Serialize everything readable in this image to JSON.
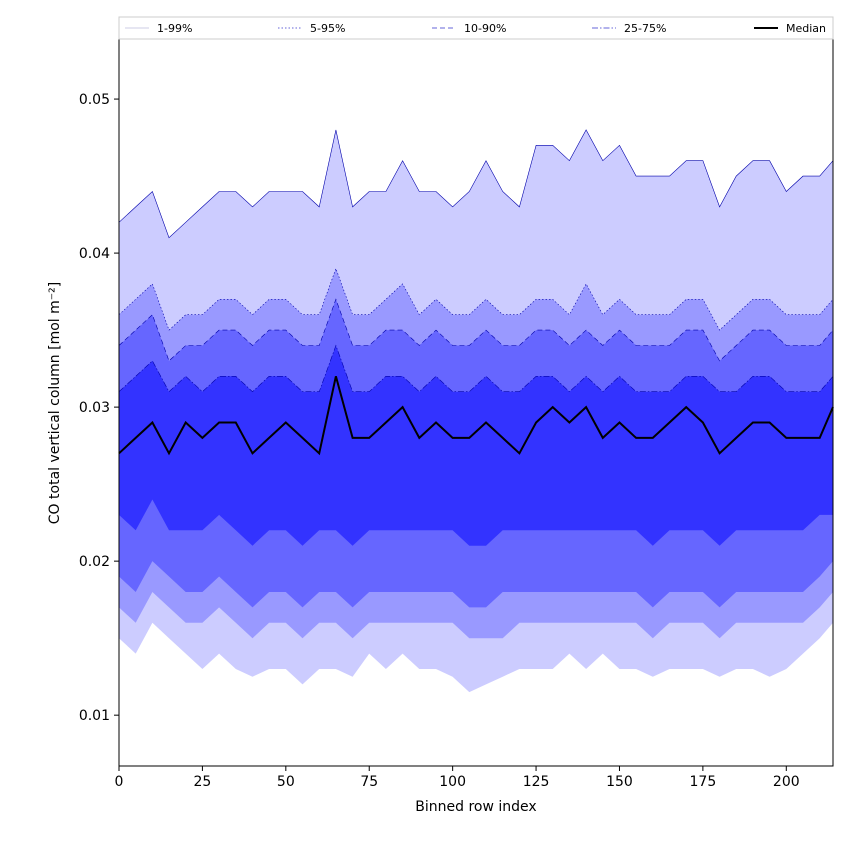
{
  "chart_data": {
    "type": "area",
    "xlabel": "Binned row index",
    "ylabel": "CO total vertical column [mol m⁻²]",
    "xlim": [
      0,
      214
    ],
    "ylim": [
      0.0067,
      0.0539
    ],
    "xticks": [
      0,
      25,
      50,
      75,
      100,
      125,
      150,
      175,
      200
    ],
    "yticks": [
      0.01,
      0.02,
      0.03,
      0.04,
      0.05
    ],
    "ytick_labels": [
      "0.01",
      "0.02",
      "0.03",
      "0.04",
      "0.05"
    ],
    "legend": {
      "placement": "top",
      "entries": [
        {
          "label": "1-99%",
          "color": "#ccccff",
          "dash": "solid"
        },
        {
          "label": "5-95%",
          "color": "#9999ff",
          "dash": "dotted"
        },
        {
          "label": "10-90%",
          "color": "#6666ff",
          "dash": "dashed"
        },
        {
          "label": "25-75%",
          "color": "#3333ff",
          "dash": "dashdot"
        },
        {
          "label": "Median",
          "color": "#000000",
          "dash": "solid"
        }
      ]
    },
    "x": [
      0,
      5,
      10,
      15,
      20,
      25,
      30,
      35,
      40,
      45,
      50,
      55,
      60,
      65,
      70,
      75,
      80,
      85,
      90,
      95,
      100,
      105,
      110,
      115,
      120,
      125,
      130,
      135,
      140,
      145,
      150,
      155,
      160,
      165,
      170,
      175,
      180,
      185,
      190,
      195,
      200,
      205,
      210,
      214
    ],
    "series": [
      {
        "name": "1-99%",
        "color": "#ccccff",
        "lower": [
          0.015,
          0.014,
          0.016,
          0.015,
          0.014,
          0.013,
          0.014,
          0.013,
          0.0125,
          0.013,
          0.013,
          0.012,
          0.013,
          0.013,
          0.0125,
          0.014,
          0.013,
          0.014,
          0.013,
          0.013,
          0.0125,
          0.0115,
          0.012,
          0.0125,
          0.013,
          0.013,
          0.013,
          0.014,
          0.013,
          0.014,
          0.013,
          0.013,
          0.0125,
          0.013,
          0.013,
          0.013,
          0.0125,
          0.013,
          0.013,
          0.0125,
          0.013,
          0.014,
          0.015,
          0.016
        ],
        "upper": [
          0.042,
          0.043,
          0.044,
          0.041,
          0.042,
          0.043,
          0.044,
          0.044,
          0.043,
          0.044,
          0.044,
          0.044,
          0.043,
          0.048,
          0.043,
          0.044,
          0.044,
          0.046,
          0.044,
          0.044,
          0.043,
          0.044,
          0.046,
          0.044,
          0.043,
          0.047,
          0.047,
          0.046,
          0.048,
          0.046,
          0.047,
          0.045,
          0.045,
          0.045,
          0.046,
          0.046,
          0.043,
          0.045,
          0.046,
          0.046,
          0.044,
          0.045,
          0.045,
          0.046
        ]
      },
      {
        "name": "5-95%",
        "color": "#9999ff",
        "lower": [
          0.017,
          0.016,
          0.018,
          0.017,
          0.016,
          0.016,
          0.017,
          0.016,
          0.015,
          0.016,
          0.016,
          0.015,
          0.016,
          0.016,
          0.015,
          0.016,
          0.016,
          0.016,
          0.016,
          0.016,
          0.016,
          0.015,
          0.015,
          0.015,
          0.016,
          0.016,
          0.016,
          0.016,
          0.016,
          0.016,
          0.016,
          0.016,
          0.015,
          0.016,
          0.016,
          0.016,
          0.015,
          0.016,
          0.016,
          0.016,
          0.016,
          0.016,
          0.017,
          0.018
        ],
        "upper": [
          0.036,
          0.037,
          0.038,
          0.035,
          0.036,
          0.036,
          0.037,
          0.037,
          0.036,
          0.037,
          0.037,
          0.036,
          0.036,
          0.039,
          0.036,
          0.036,
          0.037,
          0.038,
          0.036,
          0.037,
          0.036,
          0.036,
          0.037,
          0.036,
          0.036,
          0.037,
          0.037,
          0.036,
          0.038,
          0.036,
          0.037,
          0.036,
          0.036,
          0.036,
          0.037,
          0.037,
          0.035,
          0.036,
          0.037,
          0.037,
          0.036,
          0.036,
          0.036,
          0.037
        ]
      },
      {
        "name": "10-90%",
        "color": "#6666ff",
        "lower": [
          0.019,
          0.018,
          0.02,
          0.019,
          0.018,
          0.018,
          0.019,
          0.018,
          0.017,
          0.018,
          0.018,
          0.017,
          0.018,
          0.018,
          0.017,
          0.018,
          0.018,
          0.018,
          0.018,
          0.018,
          0.018,
          0.017,
          0.017,
          0.018,
          0.018,
          0.018,
          0.018,
          0.018,
          0.018,
          0.018,
          0.018,
          0.018,
          0.017,
          0.018,
          0.018,
          0.018,
          0.017,
          0.018,
          0.018,
          0.018,
          0.018,
          0.018,
          0.019,
          0.02
        ],
        "upper": [
          0.034,
          0.035,
          0.036,
          0.033,
          0.034,
          0.034,
          0.035,
          0.035,
          0.034,
          0.035,
          0.035,
          0.034,
          0.034,
          0.037,
          0.034,
          0.034,
          0.035,
          0.035,
          0.034,
          0.035,
          0.034,
          0.034,
          0.035,
          0.034,
          0.034,
          0.035,
          0.035,
          0.034,
          0.035,
          0.034,
          0.035,
          0.034,
          0.034,
          0.034,
          0.035,
          0.035,
          0.033,
          0.034,
          0.035,
          0.035,
          0.034,
          0.034,
          0.034,
          0.035
        ]
      },
      {
        "name": "25-75%",
        "color": "#3333ff",
        "lower": [
          0.023,
          0.022,
          0.024,
          0.022,
          0.022,
          0.022,
          0.023,
          0.022,
          0.021,
          0.022,
          0.022,
          0.021,
          0.022,
          0.022,
          0.021,
          0.022,
          0.022,
          0.022,
          0.022,
          0.022,
          0.022,
          0.021,
          0.021,
          0.022,
          0.022,
          0.022,
          0.022,
          0.022,
          0.022,
          0.022,
          0.022,
          0.022,
          0.021,
          0.022,
          0.022,
          0.022,
          0.021,
          0.022,
          0.022,
          0.022,
          0.022,
          0.022,
          0.023,
          0.023
        ],
        "upper": [
          0.031,
          0.032,
          0.033,
          0.031,
          0.032,
          0.031,
          0.032,
          0.032,
          0.031,
          0.032,
          0.032,
          0.031,
          0.031,
          0.034,
          0.031,
          0.031,
          0.032,
          0.032,
          0.031,
          0.032,
          0.031,
          0.031,
          0.032,
          0.031,
          0.031,
          0.032,
          0.032,
          0.031,
          0.032,
          0.031,
          0.032,
          0.031,
          0.031,
          0.031,
          0.032,
          0.032,
          0.031,
          0.031,
          0.032,
          0.032,
          0.031,
          0.031,
          0.031,
          0.032
        ]
      },
      {
        "name": "Median",
        "color": "#000000",
        "values": [
          0.027,
          0.028,
          0.029,
          0.027,
          0.029,
          0.028,
          0.029,
          0.029,
          0.027,
          0.028,
          0.029,
          0.028,
          0.027,
          0.032,
          0.028,
          0.028,
          0.029,
          0.03,
          0.028,
          0.029,
          0.028,
          0.028,
          0.029,
          0.028,
          0.027,
          0.029,
          0.03,
          0.029,
          0.03,
          0.028,
          0.029,
          0.028,
          0.028,
          0.029,
          0.03,
          0.029,
          0.027,
          0.028,
          0.029,
          0.029,
          0.028,
          0.028,
          0.028,
          0.03
        ]
      }
    ]
  }
}
